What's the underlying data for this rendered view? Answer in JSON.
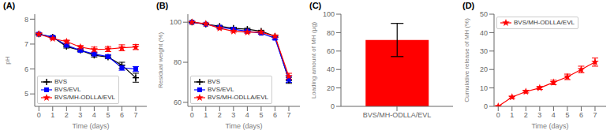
{
  "chart_data": [
    {
      "type": "line",
      "title": "(A)",
      "x_label": "Time (days)",
      "y_label": "pH",
      "xlim": [
        -0.3,
        7.8
      ],
      "xticks": [
        0,
        1,
        2,
        3,
        4,
        5,
        6,
        7
      ],
      "ylim": [
        4.5,
        8.2
      ],
      "yticks": [
        5,
        6,
        7,
        8
      ],
      "grid": false,
      "legend": "lower left",
      "x": [
        0,
        1,
        2,
        3,
        4,
        5,
        6,
        7
      ],
      "series": [
        {
          "name": "BVS",
          "color": "black",
          "marker": "plus",
          "values": [
            7.4,
            7.28,
            6.9,
            6.75,
            6.55,
            6.48,
            6.15,
            5.65
          ],
          "errors": [
            0.04,
            0.04,
            0.06,
            0.06,
            0.07,
            0.07,
            0.12,
            0.18
          ]
        },
        {
          "name": "BVS/EVL",
          "color": "blue",
          "marker": "square",
          "values": [
            7.4,
            7.28,
            6.95,
            6.75,
            6.6,
            6.5,
            6.05,
            6.0
          ],
          "errors": [
            0.04,
            0.04,
            0.06,
            0.06,
            0.07,
            0.07,
            0.1,
            0.1
          ]
        },
        {
          "name": "BVS/MH-ODLLA/EVL",
          "color": "red",
          "marker": "star",
          "values": [
            7.4,
            7.22,
            7.1,
            6.88,
            6.78,
            6.8,
            6.85,
            6.88
          ],
          "errors": [
            0.04,
            0.04,
            0.06,
            0.06,
            0.1,
            0.1,
            0.12,
            0.1
          ]
        }
      ]
    },
    {
      "type": "line",
      "title": "(B)",
      "x_label": "Time (days)",
      "y_label": "Residual weight (%)",
      "xlim": [
        -0.3,
        7.8
      ],
      "xticks": [
        0,
        1,
        2,
        3,
        4,
        5,
        6,
        7
      ],
      "ylim": [
        58,
        104
      ],
      "yticks": [
        60,
        80,
        100
      ],
      "grid": false,
      "legend": "lower left",
      "x": [
        0,
        1,
        2,
        3,
        4,
        5,
        6,
        7
      ],
      "series": [
        {
          "name": "BVS",
          "color": "black",
          "marker": "plus",
          "values": [
            100,
            99,
            98,
            97,
            96.5,
            95.5,
            93,
            71
          ],
          "errors": [
            0.3,
            0.3,
            0.4,
            0.5,
            0.5,
            0.5,
            0.6,
            1.5
          ]
        },
        {
          "name": "BVS/EVL",
          "color": "blue",
          "marker": "square",
          "values": [
            100,
            99,
            97.5,
            96.5,
            95.5,
            94.5,
            92,
            71.5
          ],
          "errors": [
            0.3,
            0.3,
            0.4,
            0.5,
            0.5,
            0.5,
            0.6,
            1.5
          ]
        },
        {
          "name": "BVS/MH-ODLLA/EVL",
          "color": "red",
          "marker": "star",
          "values": [
            100,
            99.2,
            97,
            95.5,
            95,
            95,
            93,
            73
          ],
          "errors": [
            0.3,
            0.3,
            0.4,
            0.5,
            0.5,
            0.5,
            0.6,
            1.5
          ]
        }
      ]
    },
    {
      "type": "bar",
      "title": "(C)",
      "y_label": "Loading amount of MH (µg)",
      "categories": [
        "BVS/MH-ODLLA/EVL"
      ],
      "values": [
        72
      ],
      "errors": [
        18
      ],
      "color": "red",
      "ylim": [
        0,
        100
      ],
      "yticks": [
        0,
        20,
        40,
        60,
        80,
        100
      ],
      "grid": false
    },
    {
      "type": "line",
      "title": "(D)",
      "x_label": "Time (days)",
      "y_label": "Cumulative release of MH (%)",
      "xlim": [
        -0.3,
        7.8
      ],
      "xticks": [
        0,
        1,
        2,
        3,
        4,
        5,
        6,
        7
      ],
      "ylim": [
        0,
        50
      ],
      "yticks": [
        0,
        10,
        20,
        30,
        40,
        50
      ],
      "grid": false,
      "legend": "upper left",
      "x": [
        0,
        1,
        2,
        3,
        4,
        5,
        6,
        7
      ],
      "series": [
        {
          "name": "BVS/MH-ODLLA/EVL",
          "color": "red",
          "marker": "star",
          "values": [
            0,
            5,
            8,
            10,
            13,
            16,
            20,
            24
          ],
          "errors": [
            0,
            0.5,
            0.7,
            0.8,
            1.2,
            1.5,
            1.8,
            2.2
          ]
        }
      ]
    }
  ]
}
